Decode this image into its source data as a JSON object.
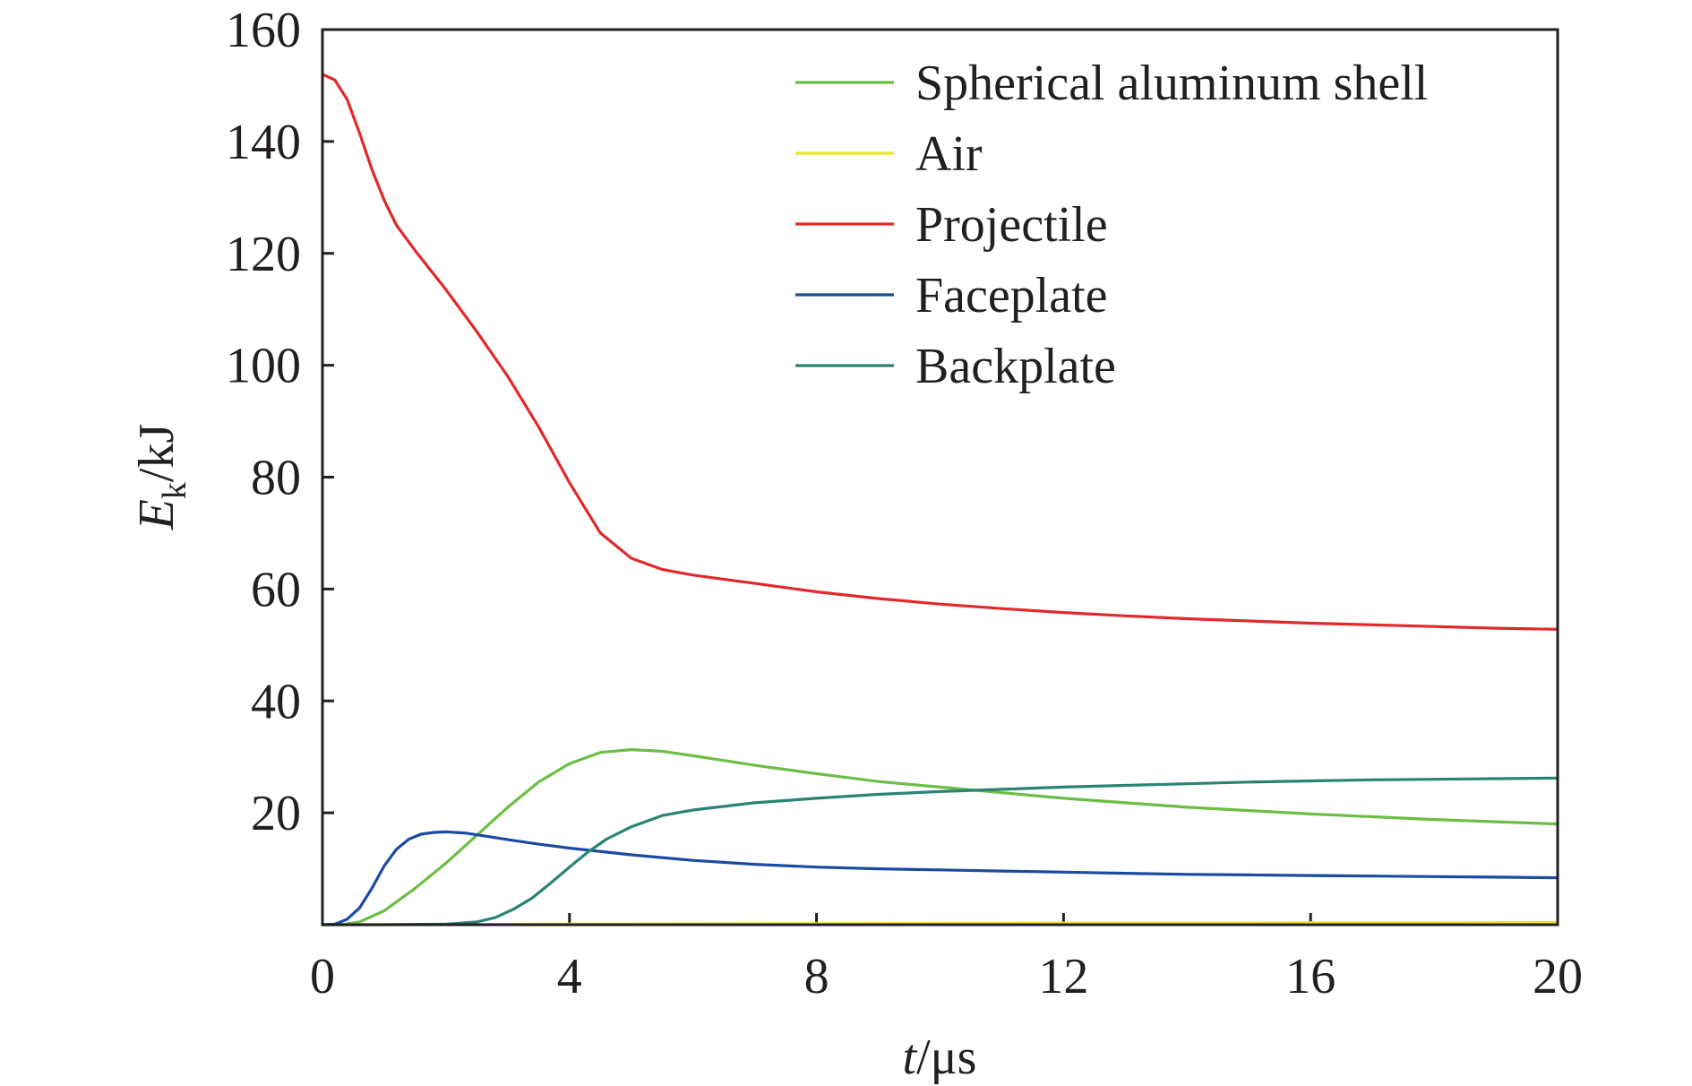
{
  "chart_data": {
    "type": "line",
    "xlabel": {
      "var": "t",
      "unit": "/μs"
    },
    "ylabel": {
      "var": "E",
      "sub": "k",
      "unit": "/kJ"
    },
    "xlim": [
      0,
      20
    ],
    "ylim": [
      0,
      160
    ],
    "xticks": [
      0,
      4,
      8,
      12,
      16,
      20
    ],
    "yticks": [
      20,
      40,
      60,
      80,
      100,
      120,
      140,
      160
    ],
    "y_zero_label_shown": false,
    "grid": false,
    "legend_position": "top-right",
    "series": [
      {
        "name": "Spherical aluminum shell",
        "color": "#6cbd45",
        "x": [
          0,
          0.3,
          0.6,
          1.0,
          1.5,
          2.0,
          2.5,
          3.0,
          3.5,
          4.0,
          4.5,
          5.0,
          5.5,
          6.0,
          7.0,
          8.0,
          9.0,
          10.0,
          11.0,
          12.0,
          13.0,
          14.0,
          15.0,
          16.0,
          17.0,
          18.0,
          19.0,
          20.0
        ],
        "y": [
          0,
          0,
          0.5,
          2.5,
          6.5,
          11.0,
          16.0,
          21.0,
          25.5,
          28.8,
          30.8,
          31.3,
          31.0,
          30.2,
          28.5,
          27.0,
          25.6,
          24.6,
          23.6,
          22.6,
          21.8,
          21.0,
          20.4,
          19.8,
          19.3,
          18.8,
          18.4,
          18.0
        ]
      },
      {
        "name": "Air",
        "color": "#e8e52a",
        "x": [
          0,
          2,
          4,
          6,
          8,
          10,
          12,
          14,
          16,
          18,
          20
        ],
        "y": [
          0,
          0.05,
          0.1,
          0.15,
          0.2,
          0.25,
          0.3,
          0.3,
          0.35,
          0.35,
          0.4
        ]
      },
      {
        "name": "Projectile",
        "color": "#e2282a",
        "x": [
          0,
          0.2,
          0.4,
          0.6,
          0.8,
          1.0,
          1.2,
          1.5,
          2.0,
          2.5,
          3.0,
          3.5,
          4.0,
          4.5,
          5.0,
          5.5,
          6.0,
          7.0,
          8.0,
          9.0,
          10.0,
          11.0,
          12.0,
          13.0,
          14.0,
          15.0,
          16.0,
          17.0,
          18.0,
          19.0,
          20.0
        ],
        "y": [
          152.0,
          151.0,
          147.5,
          141.5,
          135.0,
          129.5,
          125.0,
          120.5,
          113.5,
          106.0,
          98.0,
          89.0,
          79.0,
          70.0,
          65.5,
          63.5,
          62.5,
          61.0,
          59.5,
          58.3,
          57.3,
          56.5,
          55.8,
          55.2,
          54.7,
          54.3,
          53.9,
          53.6,
          53.3,
          53.0,
          52.8
        ]
      },
      {
        "name": "Faceplate",
        "color": "#1b4aa3",
        "x": [
          0,
          0.2,
          0.4,
          0.6,
          0.8,
          1.0,
          1.2,
          1.4,
          1.6,
          1.8,
          2.0,
          2.3,
          2.6,
          3.0,
          3.5,
          4.0,
          5.0,
          6.0,
          7.0,
          8.0,
          9.0,
          10.0,
          11.0,
          12.0,
          13.0,
          14.0,
          15.0,
          16.0,
          17.0,
          18.0,
          19.0,
          20.0
        ],
        "y": [
          0,
          0.1,
          1.0,
          3.0,
          6.5,
          10.5,
          13.5,
          15.3,
          16.2,
          16.5,
          16.6,
          16.4,
          15.9,
          15.2,
          14.4,
          13.7,
          12.5,
          11.5,
          10.8,
          10.3,
          10.0,
          9.8,
          9.6,
          9.4,
          9.2,
          9.0,
          8.9,
          8.8,
          8.7,
          8.6,
          8.5,
          8.4
        ]
      },
      {
        "name": "Backplate",
        "color": "#2a8475",
        "x": [
          0,
          1.0,
          2.0,
          2.5,
          2.8,
          3.1,
          3.4,
          3.7,
          4.0,
          4.3,
          4.6,
          5.0,
          5.5,
          6.0,
          7.0,
          8.0,
          9.0,
          10.0,
          11.0,
          12.0,
          13.0,
          14.0,
          15.0,
          16.0,
          17.0,
          18.0,
          19.0,
          20.0
        ],
        "y": [
          0,
          0,
          0.1,
          0.5,
          1.3,
          2.8,
          4.8,
          7.5,
          10.3,
          13.0,
          15.3,
          17.5,
          19.5,
          20.5,
          21.8,
          22.6,
          23.3,
          23.8,
          24.2,
          24.6,
          24.9,
          25.2,
          25.5,
          25.7,
          25.9,
          26.0,
          26.1,
          26.2
        ]
      }
    ]
  }
}
